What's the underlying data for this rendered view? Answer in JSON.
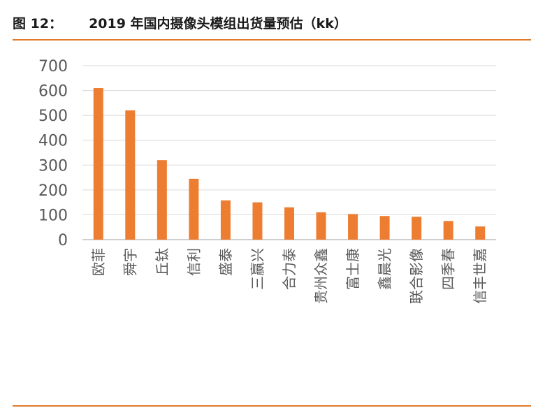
{
  "figure": {
    "number": "图 12：",
    "title": "2019 年国内摄像头模组出货量预估（kk）"
  },
  "chart_data": {
    "type": "bar",
    "title": "2019 年国内摄像头模组出货量预估（kk）",
    "categories": [
      "欧菲",
      "舜宇",
      "丘钛",
      "信利",
      "盛泰",
      "三赢兴",
      "合力泰",
      "贵州众鑫",
      "富士康",
      "鑫晨光",
      "联合影像",
      "四季春",
      "信丰世嘉"
    ],
    "values": [
      610,
      520,
      320,
      245,
      158,
      150,
      130,
      110,
      103,
      95,
      92,
      75,
      53
    ],
    "ylim": [
      0,
      700
    ],
    "yticks": [
      0,
      100,
      200,
      300,
      400,
      500,
      600,
      700
    ],
    "grid": true,
    "bar_color": "#ed7d31",
    "grid_color": "#d9d9d9",
    "axis_color": "#bfbfbf"
  }
}
